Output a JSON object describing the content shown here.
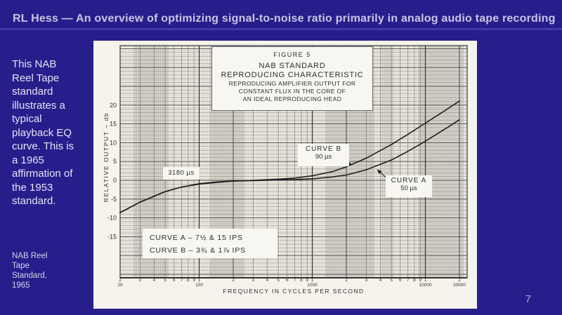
{
  "slide": {
    "title": "RL Hess — An overview of optimizing signal-to-noise ratio primarily in analog audio tape recording",
    "note": "This NAB Reel Tape standard illustrates a typical playback EQ curve. This is a 1965 affirmation of the 1953 standard.",
    "citation": "NAB Reel Tape Standard, 1965",
    "page_number": "7",
    "colors": {
      "background": "#261e8b",
      "title_text": "#c9c5e4",
      "note_text": "#e6e3f6",
      "page_number_text": "#9fb0d6",
      "scan_paper": "#f5f3ec",
      "ink": "#2d2d2d"
    }
  },
  "figure": {
    "caption_lines": [
      "FIGURE 5",
      "NAB STANDARD",
      "REPRODUCING CHARACTERISTIC",
      "REPRODUCING AMPLIFIER OUTPUT FOR",
      "CONSTANT FLUX IN THE CORE OF",
      "AN IDEAL REPRODUCING HEAD"
    ],
    "annotation_3180": "3180 µs",
    "curve_b_label": [
      "CURVE B",
      "90 µs"
    ],
    "curve_a_label": [
      "CURVE A",
      "50 µs"
    ],
    "legend_lines": [
      "CURVE A – 7½ & 15 IPS",
      "CURVE B – 3¾ & 1⅞ IPS"
    ],
    "ylabel": "RELATIVE OUTPUT – db",
    "xlabel": "FREQUENCY IN CYCLES PER SECOND"
  },
  "chart_data": {
    "type": "line",
    "title": "NAB STANDARD REPRODUCING CHARACTERISTIC",
    "xlabel": "FREQUENCY IN CYCLES PER SECOND",
    "ylabel": "RELATIVE OUTPUT - db",
    "x_scale": "log",
    "xlim": [
      20,
      22000
    ],
    "ylim": [
      -26,
      36
    ],
    "y_ticks": [
      20,
      15,
      10,
      5,
      0,
      -5,
      -10,
      -15
    ],
    "x_tick_digits": [
      "2",
      "3",
      "4",
      "5",
      "6",
      "7",
      "8",
      "9"
    ],
    "x_decade_digit": "1",
    "x_end_digit": "2",
    "x_decade_labels": [
      "20",
      "100",
      "1000",
      "10000",
      "20000"
    ],
    "grid": "dense log-log engineering graph paper",
    "legend_position": "lower-left box",
    "bass_turnover_annotation": "3180 µs",
    "x": [
      20,
      30,
      50,
      70,
      100,
      150,
      200,
      300,
      500,
      700,
      1000,
      1500,
      2000,
      3000,
      5000,
      7000,
      10000,
      15000,
      20000
    ],
    "series": [
      {
        "name": "CURVE A",
        "time_constant": "50 µs",
        "tape_speeds": "7½ & 15 IPS",
        "values": [
          -8.6,
          -5.8,
          -3.0,
          -1.8,
          -1.0,
          -0.5,
          -0.2,
          -0.1,
          0.1,
          0.2,
          0.4,
          0.9,
          1.4,
          2.8,
          5.4,
          7.7,
          10.4,
          13.7,
          16.1
        ]
      },
      {
        "name": "CURVE B",
        "time_constant": "90 µs",
        "tape_speeds": "3¾ & 1⅞ IPS",
        "values": [
          -8.6,
          -5.8,
          -3.0,
          -1.8,
          -0.9,
          -0.4,
          -0.2,
          0.0,
          0.3,
          0.6,
          1.2,
          2.3,
          3.6,
          5.9,
          9.5,
          12.2,
          15.2,
          18.6,
          21.1
        ]
      }
    ]
  }
}
